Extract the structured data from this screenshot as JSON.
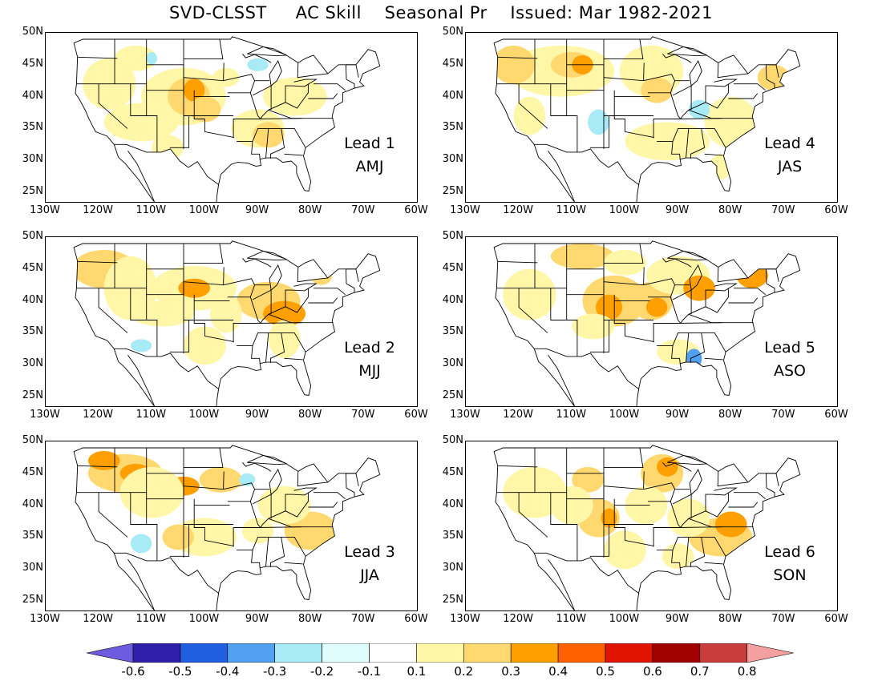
{
  "title": "SVD-CLSST     AC Skill    Seasonal Pr    Issued: Mar 1982-2021",
  "lat_labels": [
    "50N",
    "45N",
    "40N",
    "35N",
    "30N",
    "25N"
  ],
  "lon_labels": [
    "130W",
    "120W",
    "110W",
    "100W",
    "90W",
    "80W",
    "70W",
    "60W"
  ],
  "panels": [
    {
      "lead": "Lead 1",
      "season": "AMJ"
    },
    {
      "lead": "Lead 4",
      "season": "JAS"
    },
    {
      "lead": "Lead 2",
      "season": "MJJ"
    },
    {
      "lead": "Lead 5",
      "season": "ASO"
    },
    {
      "lead": "Lead 3",
      "season": "JJA"
    },
    {
      "lead": "Lead 6",
      "season": "SON"
    }
  ],
  "colorbar": {
    "labels": [
      "-0.6",
      "-0.5",
      "-0.4",
      "-0.3",
      "-0.2",
      "-0.1",
      "0.1",
      "0.2",
      "0.3",
      "0.4",
      "0.5",
      "0.6",
      "0.7",
      "0.8"
    ],
    "colors": [
      "#6d5ce0",
      "#2f1fa8",
      "#1f5fe0",
      "#52a0f0",
      "#a8eaf6",
      "#e0fcfc",
      "#ffffff",
      "#fff6a8",
      "#ffd970",
      "#ffa000",
      "#ff6000",
      "#e01400",
      "#a00000",
      "#c83c3c",
      "#f4a0a0"
    ]
  }
}
